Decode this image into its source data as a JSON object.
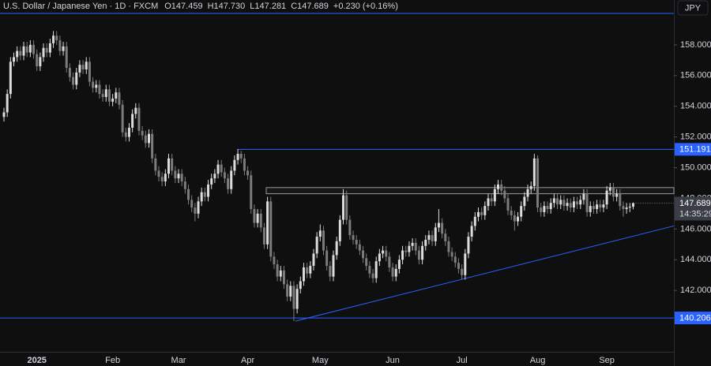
{
  "header": {
    "symbol": "U.S. Dollar / Japanese Yen · 1D · FXCM",
    "ohlc": [
      "O147.459",
      "H147.730",
      "L147.281",
      "C147.689"
    ],
    "change": "+0.230 (+0.16%)",
    "currency": "JPY"
  },
  "chart_data": {
    "type": "candlestick",
    "up_color": "#dcdcdc",
    "down_color": "#7c7c7c",
    "ylim": [
      138,
      160.1
    ],
    "yticks": [
      {
        "value": 142,
        "label": "142.000"
      },
      {
        "value": 144,
        "label": "144.000"
      },
      {
        "value": 146,
        "label": "146.000"
      },
      {
        "value": 148,
        "label": "148.000"
      },
      {
        "value": 150,
        "label": "150.000"
      },
      {
        "value": 152,
        "label": "152.000"
      },
      {
        "value": 154,
        "label": "154.000"
      },
      {
        "value": 156,
        "label": "156.000"
      },
      {
        "value": 158,
        "label": "158.000"
      }
    ],
    "levels": [
      151.191,
      140.206
    ],
    "level_color": "#2962ff",
    "zone": [
      148.3,
      148.7
    ],
    "trendline": [
      140.0,
      146.2
    ],
    "countdown": "14:35:29",
    "categories": [
      null,
      null,
      null,
      null,
      null,
      null,
      null,
      null,
      null,
      null,
      "2025",
      null,
      null,
      null,
      null,
      null,
      null,
      null,
      null,
      null,
      null,
      null,
      null,
      null,
      null,
      null,
      null,
      null,
      null,
      null,
      null,
      null,
      null,
      "Feb",
      null,
      null,
      null,
      null,
      null,
      null,
      null,
      null,
      null,
      null,
      null,
      null,
      null,
      null,
      null,
      null,
      null,
      null,
      null,
      "Mar",
      null,
      null,
      null,
      null,
      null,
      null,
      null,
      null,
      null,
      null,
      null,
      null,
      null,
      null,
      null,
      null,
      null,
      null,
      null,
      null,
      "Apr",
      null,
      null,
      null,
      null,
      null,
      null,
      null,
      null,
      null,
      null,
      null,
      null,
      null,
      null,
      null,
      null,
      null,
      null,
      null,
      null,
      null,
      "May",
      null,
      null,
      null,
      null,
      null,
      null,
      null,
      null,
      null,
      null,
      null,
      null,
      null,
      null,
      null,
      null,
      null,
      null,
      null,
      null,
      null,
      "Jun",
      null,
      null,
      null,
      null,
      null,
      null,
      null,
      null,
      null,
      null,
      null,
      null,
      null,
      null,
      null,
      null,
      null,
      null,
      null,
      null,
      "Jul",
      null,
      null,
      null,
      null,
      null,
      null,
      null,
      null,
      null,
      null,
      null,
      null,
      null,
      null,
      null,
      null,
      null,
      null,
      null,
      null,
      null,
      null,
      "Aug",
      null,
      null,
      null,
      null,
      null,
      null,
      null,
      null,
      null,
      null,
      null,
      null,
      null,
      null,
      null,
      null,
      null,
      null,
      null,
      null,
      "Sep",
      null,
      null,
      null,
      null,
      null,
      null,
      null,
      null
    ],
    "candles": [
      [
        153.3,
        153.9,
        153.0,
        153.6
      ],
      [
        153.6,
        155.1,
        153.3,
        154.8
      ],
      [
        154.8,
        157.2,
        154.5,
        156.9
      ],
      [
        156.9,
        157.5,
        156.6,
        157.2
      ],
      [
        157.2,
        157.9,
        156.9,
        157.6
      ],
      [
        157.6,
        157.9,
        157.0,
        157.3
      ],
      [
        157.3,
        158.2,
        157.0,
        157.9
      ],
      [
        157.9,
        158.2,
        157.2,
        157.5
      ],
      [
        157.5,
        158.3,
        157.2,
        158.0
      ],
      [
        158.0,
        158.3,
        157.1,
        157.4
      ],
      [
        157.4,
        157.7,
        156.3,
        156.6
      ],
      [
        156.6,
        157.5,
        156.3,
        157.2
      ],
      [
        157.2,
        158.1,
        156.9,
        157.8
      ],
      [
        157.8,
        158.1,
        157.2,
        157.5
      ],
      [
        157.5,
        158.4,
        157.2,
        158.1
      ],
      [
        158.1,
        158.9,
        157.8,
        158.6
      ],
      [
        158.6,
        158.9,
        158.0,
        158.3
      ],
      [
        158.3,
        158.6,
        157.3,
        157.6
      ],
      [
        157.6,
        158.2,
        157.3,
        157.9
      ],
      [
        157.9,
        158.2,
        156.2,
        156.5
      ],
      [
        156.5,
        156.8,
        155.6,
        155.9
      ],
      [
        155.9,
        156.2,
        155.1,
        155.4
      ],
      [
        155.4,
        156.5,
        155.1,
        156.2
      ],
      [
        156.2,
        157.0,
        155.9,
        156.7
      ],
      [
        156.7,
        157.0,
        156.1,
        156.4
      ],
      [
        156.4,
        157.2,
        156.1,
        156.9
      ],
      [
        156.9,
        157.2,
        155.3,
        155.6
      ],
      [
        155.6,
        155.9,
        154.9,
        155.2
      ],
      [
        155.2,
        155.7,
        154.9,
        155.4
      ],
      [
        155.4,
        155.7,
        154.5,
        154.8
      ],
      [
        154.8,
        155.1,
        154.3,
        154.6
      ],
      [
        154.6,
        155.4,
        154.3,
        155.1
      ],
      [
        155.1,
        155.4,
        154.0,
        154.3
      ],
      [
        154.3,
        154.8,
        154.0,
        154.5
      ],
      [
        154.5,
        155.2,
        154.2,
        154.9
      ],
      [
        154.9,
        155.2,
        153.8,
        154.1
      ],
      [
        154.1,
        154.4,
        152.0,
        152.3
      ],
      [
        152.3,
        152.6,
        151.7,
        152.0
      ],
      [
        152.0,
        152.9,
        151.7,
        152.6
      ],
      [
        152.6,
        153.8,
        152.3,
        153.5
      ],
      [
        153.5,
        154.2,
        153.2,
        153.9
      ],
      [
        153.9,
        154.2,
        152.1,
        152.4
      ],
      [
        152.4,
        152.7,
        151.8,
        152.1
      ],
      [
        152.1,
        152.4,
        151.3,
        151.6
      ],
      [
        151.6,
        152.5,
        151.3,
        152.2
      ],
      [
        152.2,
        152.5,
        150.3,
        150.6
      ],
      [
        150.6,
        150.9,
        149.5,
        149.8
      ],
      [
        149.8,
        150.1,
        149.1,
        149.4
      ],
      [
        149.4,
        149.7,
        148.8,
        149.1
      ],
      [
        149.1,
        149.9,
        148.8,
        149.6
      ],
      [
        149.6,
        150.9,
        149.3,
        150.6
      ],
      [
        150.6,
        150.9,
        149.5,
        149.8
      ],
      [
        149.8,
        150.1,
        149.0,
        149.3
      ],
      [
        149.3,
        149.9,
        149.0,
        149.6
      ],
      [
        149.6,
        149.9,
        148.8,
        149.1
      ],
      [
        149.1,
        149.4,
        148.3,
        148.6
      ],
      [
        148.6,
        148.9,
        147.6,
        147.9
      ],
      [
        147.9,
        148.2,
        147.1,
        147.4
      ],
      [
        147.4,
        147.7,
        146.5,
        147.0
      ],
      [
        147.0,
        148.1,
        146.7,
        147.8
      ],
      [
        147.8,
        148.7,
        147.5,
        148.4
      ],
      [
        148.4,
        148.7,
        147.8,
        148.1
      ],
      [
        148.1,
        149.2,
        147.8,
        148.9
      ],
      [
        148.9,
        149.6,
        148.6,
        149.3
      ],
      [
        149.3,
        149.9,
        149.0,
        149.6
      ],
      [
        149.6,
        150.5,
        149.3,
        150.2
      ],
      [
        150.2,
        150.5,
        149.4,
        149.7
      ],
      [
        149.7,
        150.0,
        149.0,
        149.3
      ],
      [
        149.3,
        149.6,
        148.3,
        148.6
      ],
      [
        148.6,
        150.1,
        148.3,
        149.8
      ],
      [
        149.8,
        150.8,
        149.5,
        150.5
      ],
      [
        150.5,
        151.19,
        150.2,
        150.9
      ],
      [
        150.9,
        151.1,
        150.3,
        150.6
      ],
      [
        150.6,
        150.9,
        149.5,
        149.8
      ],
      [
        149.8,
        150.1,
        149.2,
        149.5
      ],
      [
        149.5,
        149.8,
        147.0,
        147.3
      ],
      [
        147.3,
        147.6,
        146.1,
        146.4
      ],
      [
        146.4,
        147.3,
        146.1,
        147.0
      ],
      [
        147.0,
        147.3,
        145.8,
        146.1
      ],
      [
        146.1,
        146.4,
        144.7,
        145.0
      ],
      [
        145.0,
        148.1,
        144.7,
        147.8
      ],
      [
        147.8,
        148.1,
        143.9,
        144.2
      ],
      [
        144.2,
        144.5,
        143.4,
        143.7
      ],
      [
        143.7,
        144.0,
        142.6,
        142.9
      ],
      [
        142.9,
        143.6,
        142.6,
        143.3
      ],
      [
        143.3,
        143.6,
        142.1,
        142.4
      ],
      [
        142.4,
        142.7,
        141.3,
        141.6
      ],
      [
        141.6,
        142.6,
        141.3,
        142.3
      ],
      [
        142.3,
        142.6,
        140.0,
        140.8
      ],
      [
        140.8,
        142.4,
        140.5,
        142.1
      ],
      [
        142.1,
        142.9,
        141.8,
        142.6
      ],
      [
        142.6,
        143.8,
        142.3,
        143.5
      ],
      [
        143.5,
        143.8,
        142.8,
        143.1
      ],
      [
        143.1,
        143.9,
        142.8,
        143.6
      ],
      [
        143.6,
        144.7,
        143.3,
        144.4
      ],
      [
        144.4,
        145.8,
        144.1,
        145.5
      ],
      [
        145.5,
        146.3,
        145.2,
        145.9
      ],
      [
        145.9,
        146.2,
        144.3,
        144.6
      ],
      [
        144.6,
        144.9,
        143.3,
        143.6
      ],
      [
        143.6,
        143.9,
        142.6,
        142.9
      ],
      [
        142.9,
        144.6,
        142.6,
        144.3
      ],
      [
        144.3,
        145.5,
        144.0,
        145.2
      ],
      [
        145.2,
        146.9,
        144.9,
        146.6
      ],
      [
        146.6,
        148.6,
        146.3,
        148.2
      ],
      [
        148.2,
        148.5,
        146.3,
        146.6
      ],
      [
        146.6,
        146.9,
        145.3,
        145.6
      ],
      [
        145.6,
        145.9,
        145.0,
        145.3
      ],
      [
        145.3,
        145.6,
        144.7,
        145.0
      ],
      [
        145.0,
        145.3,
        144.3,
        144.6
      ],
      [
        144.6,
        144.9,
        143.8,
        144.1
      ],
      [
        144.1,
        144.4,
        143.3,
        143.6
      ],
      [
        143.6,
        143.9,
        142.8,
        143.1
      ],
      [
        143.1,
        143.4,
        142.5,
        142.8
      ],
      [
        142.8,
        144.2,
        142.5,
        143.9
      ],
      [
        143.9,
        144.7,
        143.6,
        144.4
      ],
      [
        144.4,
        144.9,
        144.1,
        144.6
      ],
      [
        144.6,
        144.9,
        143.9,
        144.2
      ],
      [
        144.2,
        144.5,
        143.2,
        143.5
      ],
      [
        143.5,
        143.8,
        142.6,
        142.9
      ],
      [
        142.9,
        143.7,
        142.6,
        143.4
      ],
      [
        143.4,
        144.3,
        143.1,
        144.0
      ],
      [
        144.0,
        144.9,
        143.7,
        144.6
      ],
      [
        144.6,
        144.9,
        144.2,
        144.5
      ],
      [
        144.5,
        145.2,
        144.2,
        144.9
      ],
      [
        144.9,
        145.4,
        144.6,
        145.1
      ],
      [
        145.1,
        145.4,
        144.3,
        144.6
      ],
      [
        144.6,
        144.9,
        143.7,
        144.0
      ],
      [
        144.0,
        145.2,
        143.7,
        144.9
      ],
      [
        144.9,
        145.6,
        144.6,
        145.3
      ],
      [
        145.3,
        145.9,
        145.0,
        145.6
      ],
      [
        145.6,
        145.9,
        144.9,
        145.2
      ],
      [
        145.2,
        146.4,
        144.9,
        146.1
      ],
      [
        146.1,
        147.3,
        145.8,
        146.4
      ],
      [
        146.4,
        146.7,
        145.4,
        145.7
      ],
      [
        145.7,
        146.0,
        144.9,
        145.2
      ],
      [
        145.2,
        145.5,
        144.2,
        144.5
      ],
      [
        144.5,
        144.8,
        143.9,
        144.2
      ],
      [
        144.2,
        144.5,
        143.5,
        143.8
      ],
      [
        143.8,
        144.1,
        143.1,
        143.4
      ],
      [
        143.4,
        143.7,
        142.7,
        143.0
      ],
      [
        143.0,
        144.7,
        142.7,
        144.4
      ],
      [
        144.4,
        145.8,
        144.1,
        145.5
      ],
      [
        145.5,
        146.5,
        145.2,
        146.2
      ],
      [
        146.2,
        147.1,
        145.9,
        146.8
      ],
      [
        146.8,
        147.4,
        146.5,
        147.1
      ],
      [
        147.1,
        147.4,
        146.6,
        146.9
      ],
      [
        146.9,
        147.8,
        146.6,
        147.5
      ],
      [
        147.5,
        148.3,
        147.2,
        148.0
      ],
      [
        148.0,
        148.3,
        147.5,
        147.8
      ],
      [
        147.8,
        148.9,
        147.5,
        148.6
      ],
      [
        148.6,
        149.2,
        148.3,
        148.9
      ],
      [
        148.9,
        149.2,
        148.2,
        148.5
      ],
      [
        148.5,
        148.8,
        147.7,
        148.0
      ],
      [
        148.0,
        148.3,
        146.9,
        147.2
      ],
      [
        147.2,
        147.5,
        146.6,
        146.9
      ],
      [
        146.9,
        147.2,
        145.9,
        146.5
      ],
      [
        146.5,
        147.1,
        146.2,
        146.8
      ],
      [
        146.8,
        147.8,
        146.5,
        147.5
      ],
      [
        147.5,
        148.4,
        147.2,
        148.1
      ],
      [
        148.1,
        148.9,
        147.8,
        148.6
      ],
      [
        148.6,
        149.1,
        148.3,
        148.8
      ],
      [
        148.8,
        150.9,
        148.5,
        150.6
      ],
      [
        150.6,
        150.8,
        147.1,
        147.4
      ],
      [
        147.4,
        147.7,
        146.8,
        147.1
      ],
      [
        147.1,
        147.8,
        146.8,
        147.5
      ],
      [
        147.5,
        147.8,
        147.0,
        147.3
      ],
      [
        147.3,
        148.0,
        147.0,
        147.7
      ],
      [
        147.7,
        148.3,
        147.4,
        148.0
      ],
      [
        148.0,
        148.3,
        147.3,
        147.6
      ],
      [
        147.6,
        148.2,
        147.3,
        147.9
      ],
      [
        147.9,
        148.2,
        147.2,
        147.5
      ],
      [
        147.5,
        148.0,
        147.2,
        147.7
      ],
      [
        147.7,
        148.0,
        147.1,
        147.4
      ],
      [
        147.4,
        148.1,
        147.1,
        147.8
      ],
      [
        147.8,
        148.1,
        147.3,
        147.6
      ],
      [
        147.6,
        148.2,
        147.3,
        147.9
      ],
      [
        147.9,
        148.6,
        147.6,
        148.3
      ],
      [
        148.3,
        148.6,
        146.8,
        147.1
      ],
      [
        147.1,
        147.8,
        146.8,
        147.5
      ],
      [
        147.5,
        147.8,
        147.0,
        147.3
      ],
      [
        147.3,
        147.9,
        147.0,
        147.6
      ],
      [
        147.6,
        147.9,
        147.1,
        147.4
      ],
      [
        147.4,
        147.9,
        147.1,
        147.6
      ],
      [
        147.6,
        148.8,
        147.3,
        148.5
      ],
      [
        148.5,
        149.0,
        148.2,
        148.7
      ],
      [
        148.7,
        149.0,
        147.8,
        148.1
      ],
      [
        148.1,
        148.6,
        147.8,
        148.3
      ],
      [
        148.3,
        148.6,
        147.2,
        147.5
      ],
      [
        147.5,
        147.8,
        146.8,
        147.3
      ],
      [
        147.3,
        147.7,
        147.0,
        147.4
      ],
      [
        147.4,
        147.7,
        147.1,
        147.459
      ],
      [
        147.459,
        147.73,
        147.281,
        147.689
      ]
    ]
  }
}
